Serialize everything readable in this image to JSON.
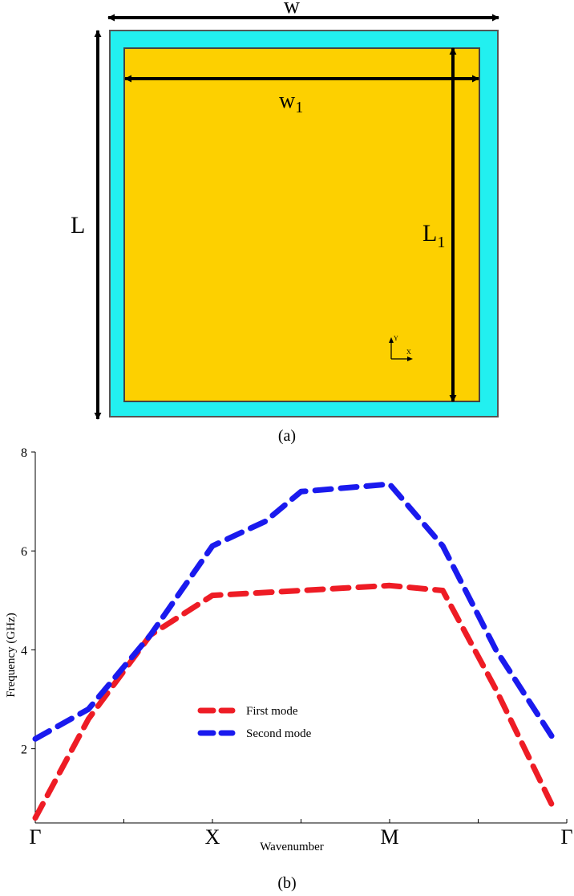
{
  "panel_a": {
    "label_w": "w",
    "label_w1_main": "w",
    "label_w1_sub": "1",
    "label_L": "L",
    "label_L1_main": "L",
    "label_L1_sub": "1",
    "axis_y": "Y",
    "axis_x": "X",
    "caption": "(a)",
    "colors": {
      "substrate": "#22f0f0",
      "patch": "#fdd000",
      "outline": "#555555"
    }
  },
  "panel_b": {
    "caption": "(b)"
  },
  "chart_data": {
    "type": "line",
    "title": "",
    "xlabel": "Wavenumber",
    "ylabel": "Frequency (GHz)",
    "ylim": [
      0.5,
      8
    ],
    "yticks": [
      2,
      4,
      6,
      8
    ],
    "x_tick_labels": [
      "Γ",
      "",
      "X",
      "",
      "M",
      "",
      "Γ"
    ],
    "legend_position": "center",
    "grid": false,
    "series": [
      {
        "name": "First mode",
        "color": "#ee1c25",
        "style": "dashed",
        "points": [
          [
            0.0,
            0.6
          ],
          [
            0.6,
            2.6
          ],
          [
            1.3,
            4.3
          ],
          [
            2.0,
            5.1
          ],
          [
            3.0,
            5.2
          ],
          [
            4.0,
            5.3
          ],
          [
            4.6,
            5.2
          ],
          [
            5.2,
            3.2
          ],
          [
            5.85,
            0.8
          ]
        ]
      },
      {
        "name": "Second mode",
        "color": "#1a1aee",
        "style": "dashed",
        "points": [
          [
            0.0,
            2.2
          ],
          [
            0.6,
            2.8
          ],
          [
            1.3,
            4.3
          ],
          [
            2.0,
            6.1
          ],
          [
            2.6,
            6.6
          ],
          [
            3.0,
            7.2
          ],
          [
            4.0,
            7.35
          ],
          [
            4.6,
            6.1
          ],
          [
            5.2,
            4.0
          ],
          [
            5.85,
            2.2
          ]
        ]
      }
    ]
  }
}
